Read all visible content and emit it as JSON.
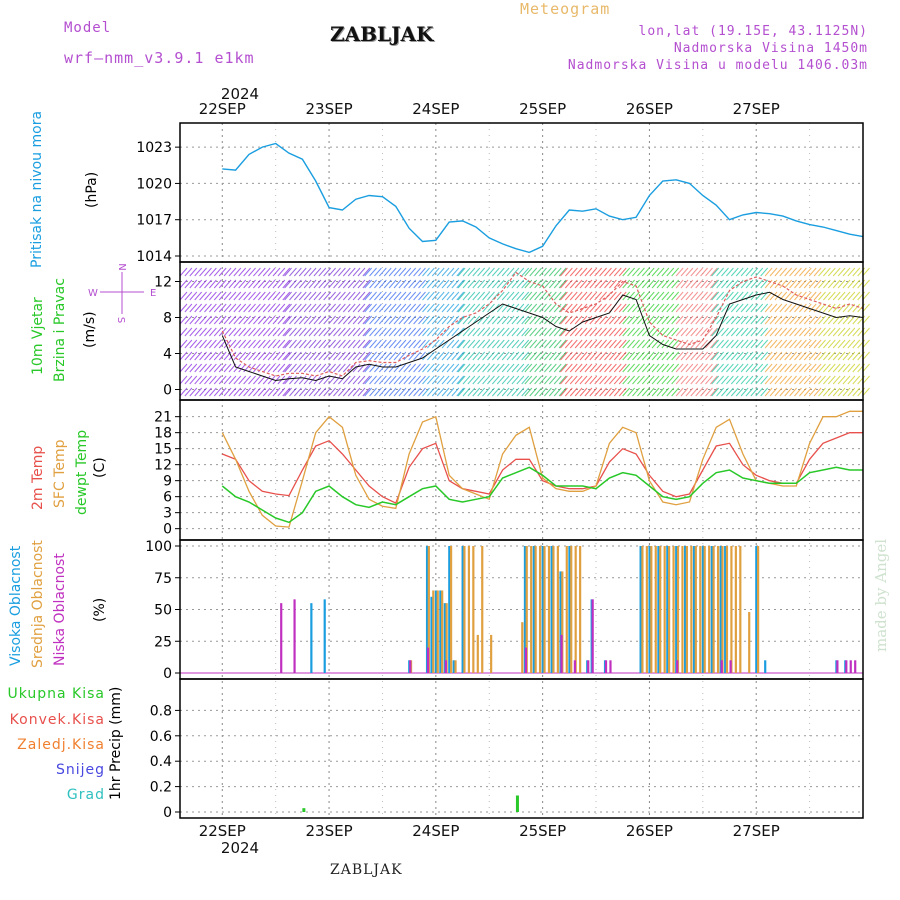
{
  "header": {
    "model_label": "Model",
    "model_name": "wrf—nmm_v3.9.1  e1km",
    "station": "ZABLJAK",
    "title": "Meteogram",
    "lonlat": "lon,lat (19.15E, 43.1125N)",
    "elevation": "Nadmorska Visina 1450m",
    "model_elevation": "Nadmorska Visina u modelu 1406.03m"
  },
  "footer": {
    "station": "ZABLJAK"
  },
  "watermark": "made by Angel",
  "axis": {
    "year": "2024",
    "day_labels": [
      "22SEP",
      "23SEP",
      "24SEP",
      "25SEP",
      "26SEP",
      "27SEP"
    ]
  },
  "colors": {
    "pressure": "#1a9ee0",
    "temp2m": "#e8504c",
    "sfc_temp": "#e0a040",
    "dewpt": "#28c828",
    "high_cloud": "#1a9ee0",
    "mid_cloud": "#e0a040",
    "low_cloud": "#c030c0",
    "wind_speed": "#111111",
    "wind_gust": "#e06060"
  },
  "panel_labels": {
    "pressure": {
      "name": "Pritisak na nivou mora",
      "unit": "(hPa)"
    },
    "wind": {
      "name1": "10m Vjetar",
      "name2": "Brzina i Pravac",
      "unit": "(m/s)",
      "compass": {
        "n": "N",
        "s": "S",
        "w": "W",
        "e": "E"
      }
    },
    "temp": {
      "t2m": "2m Temp",
      "sfc": "SFC Temp",
      "dew": "dewpt Temp",
      "unit": "(C)"
    },
    "cloud": {
      "high": "Visoka Oblacnost",
      "mid": "Srednja Oblacnost",
      "low": "Niska Oblacnost",
      "unit": "(%)"
    },
    "precip": {
      "unit": "1hr Precip (mm)",
      "legend": [
        "Ukupna Kisa",
        "Konvek.Kisa",
        "Zaledj.Kisa",
        "Snijeg",
        "Grad"
      ],
      "legend_colors": [
        "#28c828",
        "#e8504c",
        "#f08030",
        "#4848e0",
        "#30c0c0"
      ]
    }
  },
  "chart_data": [
    {
      "type": "line",
      "name": "pressure",
      "ylabel": "Pritisak na nivou mora (hPa)",
      "ylim": [
        1014,
        1024.5
      ],
      "yticks": [
        1014,
        1017,
        1020,
        1023
      ],
      "x_hours": [
        0,
        3,
        6,
        9,
        12,
        15,
        18,
        21,
        24,
        27,
        30,
        33,
        36,
        39,
        42,
        45,
        48,
        51,
        54,
        57,
        60,
        63,
        66,
        69,
        72,
        75,
        78,
        81,
        84,
        87,
        90,
        93,
        96,
        99,
        102,
        105,
        108,
        111,
        114,
        117,
        120,
        123,
        126,
        129,
        132,
        135,
        138,
        141,
        144
      ],
      "series": [
        {
          "values": [
            1021.2,
            1021.1,
            1022.4,
            1023.0,
            1023.3,
            1022.5,
            1022.0,
            1020.2,
            1018.0,
            1017.8,
            1018.7,
            1019.0,
            1018.9,
            1018.1,
            1016.3,
            1015.2,
            1015.3,
            1016.8,
            1016.9,
            1016.4,
            1015.5,
            1015.0,
            1014.6,
            1014.3,
            1014.8,
            1016.5,
            1017.8,
            1017.7,
            1017.9,
            1017.3,
            1017.0,
            1017.2,
            1019.0,
            1020.2,
            1020.3,
            1020.0,
            1019.0,
            1018.2,
            1017.0,
            1017.4,
            1017.6,
            1017.5,
            1017.3,
            1016.9,
            1016.6,
            1016.4,
            1016.1,
            1015.8,
            1015.6
          ]
        }
      ],
      "grid": true
    },
    {
      "type": "line",
      "name": "wind",
      "ylabel": "10m Vjetar Brzina i Pravac (m/s)",
      "ylim": [
        -0.5,
        13.5
      ],
      "yticks": [
        0,
        4,
        8,
        12
      ],
      "x_hours": [
        0,
        3,
        6,
        9,
        12,
        15,
        18,
        21,
        24,
        27,
        30,
        33,
        36,
        39,
        42,
        45,
        48,
        51,
        54,
        57,
        60,
        63,
        66,
        69,
        72,
        75,
        78,
        81,
        84,
        87,
        90,
        93,
        96,
        99,
        102,
        105,
        108,
        111,
        114,
        117,
        120,
        123,
        126,
        129,
        132,
        135,
        138,
        141,
        144
      ],
      "series": [
        {
          "values": [
            6.0,
            2.5,
            2.0,
            1.5,
            1.0,
            1.2,
            1.3,
            1.0,
            1.5,
            1.2,
            2.5,
            2.8,
            2.5,
            2.5,
            3.0,
            3.5,
            4.5,
            5.5,
            6.5,
            7.5,
            8.5,
            9.5,
            9.0,
            8.5,
            8.0,
            7.0,
            6.5,
            7.5,
            8.0,
            8.5,
            10.5,
            10.0,
            6.0,
            5.0,
            4.5,
            4.5,
            4.5,
            6.0,
            9.5,
            10.0,
            10.5,
            10.8,
            10.0,
            9.5,
            9.0,
            8.5,
            8.0,
            8.2,
            8.0
          ]
        },
        {
          "values": [
            6.5,
            3.5,
            2.5,
            2.0,
            1.5,
            1.8,
            1.8,
            1.5,
            2.0,
            1.5,
            3.0,
            3.2,
            3.0,
            3.0,
            3.8,
            4.5,
            5.5,
            7.0,
            8.0,
            8.5,
            9.5,
            11.0,
            13.0,
            12.0,
            11.5,
            9.5,
            8.5,
            9.0,
            9.5,
            10.5,
            12.0,
            11.5,
            7.5,
            6.0,
            5.5,
            5.0,
            5.5,
            8.0,
            11.0,
            12.0,
            12.5,
            12.0,
            11.5,
            10.5,
            10.0,
            9.5,
            9.0,
            9.5,
            9.0
          ]
        }
      ],
      "grid": true
    },
    {
      "type": "line",
      "name": "temperature",
      "ylabel": "(C)",
      "ylim": [
        -1,
        23
      ],
      "yticks": [
        0,
        3,
        6,
        9,
        12,
        15,
        18,
        21
      ],
      "x_hours": [
        0,
        3,
        6,
        9,
        12,
        15,
        18,
        21,
        24,
        27,
        30,
        33,
        36,
        39,
        42,
        45,
        48,
        51,
        54,
        57,
        60,
        63,
        66,
        69,
        72,
        75,
        78,
        81,
        84,
        87,
        90,
        93,
        96,
        99,
        102,
        105,
        108,
        111,
        114,
        117,
        120,
        123,
        126,
        129,
        132,
        135,
        138,
        141,
        144
      ],
      "series": [
        {
          "values": [
            14,
            13,
            9,
            7,
            6.5,
            6.2,
            11,
            15.5,
            16.5,
            14,
            11,
            8,
            6,
            4.8,
            11.5,
            15,
            16,
            9,
            7.5,
            7,
            6.5,
            11,
            13,
            13,
            9,
            8,
            7.5,
            7.5,
            8,
            12.5,
            15,
            14,
            10,
            7,
            6,
            6.5,
            11,
            15.5,
            16,
            12,
            10,
            9,
            8.5,
            8.5,
            13,
            16,
            17,
            18,
            18
          ]
        },
        {
          "values": [
            18,
            13,
            7,
            2.5,
            0.5,
            0.3,
            9,
            18,
            21,
            19,
            10,
            5.5,
            4.2,
            3.8,
            14,
            20,
            21,
            10,
            7.5,
            6.5,
            5.5,
            14,
            17.5,
            19,
            9.5,
            7.5,
            7,
            7,
            8,
            16,
            19,
            18,
            9,
            5,
            4.5,
            5,
            13,
            19,
            20.5,
            14,
            9,
            8.5,
            8,
            8,
            16,
            21,
            21,
            22,
            22
          ]
        },
        {
          "values": [
            8,
            6,
            5,
            3.5,
            2,
            1.2,
            3,
            7,
            8,
            6,
            4.5,
            4,
            5,
            4.5,
            6,
            7.5,
            8,
            5.5,
            5,
            5.5,
            6,
            9.5,
            10.5,
            11.5,
            10,
            8,
            8,
            8,
            7.5,
            9.5,
            10.5,
            10,
            8,
            6,
            5.5,
            6,
            8.5,
            10.5,
            11,
            9.5,
            9,
            8.5,
            8.5,
            8.5,
            10.5,
            11,
            11.5,
            11,
            11
          ]
        }
      ],
      "grid": true
    },
    {
      "type": "bar",
      "name": "cloud",
      "ylabel": "(%)",
      "ylim": [
        0,
        100
      ],
      "yticks": [
        0,
        25,
        50,
        75,
        100
      ],
      "series": [
        {
          "bars": [
            [
              30,
              55
            ],
            [
              33,
              58
            ],
            [
              52,
              10
            ],
            [
              56,
              100
            ],
            [
              57,
              60
            ],
            [
              58,
              65
            ],
            [
              59,
              65
            ],
            [
              60,
              55
            ],
            [
              61,
              100
            ],
            [
              62,
              10
            ],
            [
              64,
              100
            ],
            [
              78,
              100
            ],
            [
              80,
              100
            ],
            [
              82,
              100
            ],
            [
              84,
              100
            ],
            [
              86,
              80
            ],
            [
              88,
              100
            ],
            [
              92,
              10
            ],
            [
              93,
              58
            ],
            [
              96,
              10
            ],
            [
              104,
              100
            ],
            [
              106,
              100
            ],
            [
              108,
              100
            ],
            [
              110,
              100
            ],
            [
              112,
              100
            ],
            [
              114,
              100
            ],
            [
              116,
              100
            ],
            [
              118,
              100
            ],
            [
              120,
              100
            ],
            [
              122,
              100
            ],
            [
              123,
              100
            ],
            [
              130,
              100
            ],
            [
              132,
              10
            ],
            [
              148,
              10
            ],
            [
              150,
              10
            ]
          ]
        },
        {
          "bars": [
            [
              52,
              10
            ],
            [
              56,
              100
            ],
            [
              57,
              65
            ],
            [
              58,
              65
            ],
            [
              59,
              65
            ],
            [
              60,
              55
            ],
            [
              61,
              100
            ],
            [
              62,
              10
            ],
            [
              64,
              100
            ],
            [
              65,
              100
            ],
            [
              66,
              100
            ],
            [
              67,
              30
            ],
            [
              68,
              100
            ],
            [
              70,
              30
            ],
            [
              77,
              40
            ],
            [
              78,
              100
            ],
            [
              79,
              100
            ],
            [
              80,
              100
            ],
            [
              81,
              100
            ],
            [
              82,
              100
            ],
            [
              83,
              100
            ],
            [
              84,
              100
            ],
            [
              85,
              100
            ],
            [
              86,
              80
            ],
            [
              87,
              100
            ],
            [
              88,
              100
            ],
            [
              89,
              100
            ],
            [
              90,
              100
            ],
            [
              104,
              100
            ],
            [
              105,
              100
            ],
            [
              106,
              100
            ],
            [
              107,
              100
            ],
            [
              108,
              100
            ],
            [
              109,
              100
            ],
            [
              110,
              100
            ],
            [
              111,
              100
            ],
            [
              112,
              100
            ],
            [
              113,
              100
            ],
            [
              114,
              100
            ],
            [
              115,
              100
            ],
            [
              116,
              100
            ],
            [
              117,
              100
            ],
            [
              118,
              100
            ],
            [
              119,
              100
            ],
            [
              120,
              100
            ],
            [
              121,
              100
            ],
            [
              122,
              100
            ],
            [
              123,
              100
            ],
            [
              124,
              100
            ],
            [
              125,
              100
            ],
            [
              126,
              100
            ],
            [
              128,
              48
            ],
            [
              130,
              100
            ]
          ]
        },
        {
          "bars": [
            [
              23,
              55
            ],
            [
              26,
              58
            ],
            [
              52,
              10
            ],
            [
              56,
              20
            ],
            [
              60,
              10
            ],
            [
              78,
              20
            ],
            [
              86,
              30
            ],
            [
              89,
              10
            ],
            [
              92,
              10
            ],
            [
              93,
              58
            ],
            [
              96,
              10
            ],
            [
              97,
              10
            ],
            [
              112,
              10
            ],
            [
              122,
              10
            ],
            [
              124,
              10
            ],
            [
              148,
              10
            ],
            [
              150,
              10
            ],
            [
              151,
              10
            ],
            [
              152,
              10
            ]
          ]
        }
      ],
      "grid": true
    },
    {
      "type": "bar",
      "name": "precip",
      "ylabel": "1hr Precip (mm)",
      "ylim": [
        0,
        1.0
      ],
      "yticks": [
        0,
        0.2,
        0.4,
        0.6,
        0.8
      ],
      "series": [
        {
          "bars": [
            [
              28,
              0.03
            ],
            [
              76,
              0.13
            ]
          ]
        }
      ],
      "grid": true
    }
  ]
}
